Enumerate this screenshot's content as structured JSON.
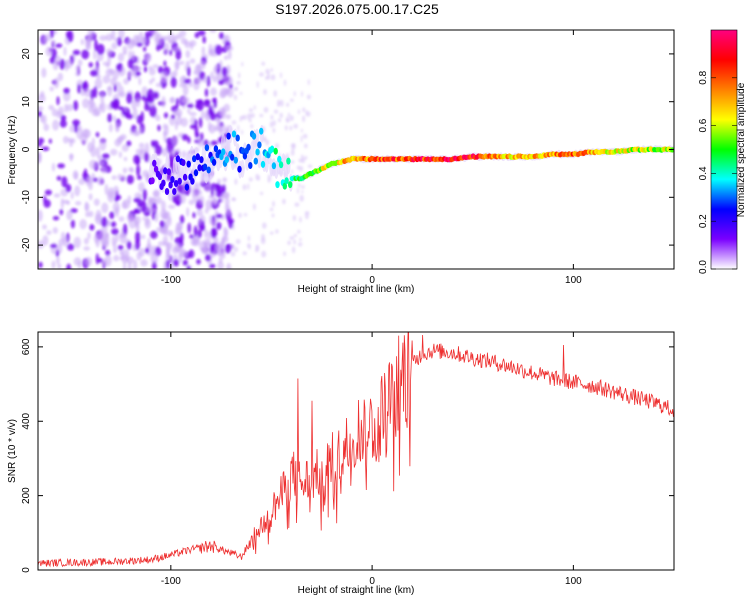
{
  "figure": {
    "title": "S197.2026.075.00.17.C25"
  },
  "chart_data": [
    {
      "type": "heatmap",
      "title": "",
      "xlabel": "Height of straight line (km)",
      "ylabel": "Frequency (Hz)",
      "xlim": [
        -166,
        150
      ],
      "ylim": [
        -25,
        25
      ],
      "xticks": [
        -100,
        0,
        100
      ],
      "yticks": [
        -20,
        -10,
        0,
        10,
        20
      ],
      "xtick_labels": [
        "-100",
        "0",
        "100"
      ],
      "ytick_labels": [
        "-20",
        "-10",
        "0",
        "10",
        "20"
      ],
      "colorbar": {
        "label": "Normalized spectral amplitude",
        "range": [
          0,
          1
        ],
        "ticks": [
          0.0,
          0.2,
          0.4,
          0.6,
          0.8
        ],
        "tick_labels": [
          "0.0",
          "0.2",
          "0.4",
          "0.6",
          "0.8"
        ],
        "colors": [
          "#ffffff",
          "#7a00ff",
          "#0000ff",
          "#00ffff",
          "#00ff00",
          "#ffff00",
          "#ff8000",
          "#ff0000",
          "#ff0080"
        ]
      },
      "ridge": {
        "x": [
          -166,
          -140,
          -120,
          -100,
          -90,
          -80,
          -70,
          -65,
          -60,
          -55,
          -50,
          -45,
          -40,
          -35,
          -30,
          -20,
          -10,
          0,
          10,
          20,
          30,
          40,
          50,
          60,
          70,
          80,
          90,
          100,
          110,
          120,
          130,
          140,
          150
        ],
        "frequency": [
          0,
          0,
          -2,
          -6,
          -4,
          -2,
          1,
          -2,
          0,
          1,
          -3,
          -5,
          -6,
          -6,
          -5,
          -3,
          -2,
          -2,
          -2,
          -2,
          -2,
          -2,
          -1.5,
          -1.5,
          -1.5,
          -1.5,
          -1,
          -1,
          -0.5,
          -0.5,
          0,
          0,
          0
        ],
        "amplitude": [
          0.05,
          0.05,
          0.1,
          0.2,
          0.25,
          0.3,
          0.35,
          0.3,
          0.35,
          0.4,
          0.45,
          0.45,
          0.5,
          0.55,
          0.6,
          0.7,
          0.8,
          0.85,
          0.9,
          0.95,
          1.0,
          1.0,
          0.95,
          0.8,
          0.75,
          0.75,
          0.8,
          0.85,
          0.75,
          0.7,
          0.65,
          0.65,
          0.7
        ]
      },
      "scatter_region": {
        "x": [
          -166,
          -70
        ],
        "frequency": [
          -25,
          25
        ],
        "amplitude": 0.2
      }
    },
    {
      "type": "line",
      "title": "",
      "xlabel": "Height of straight line (km)",
      "ylabel": "SNR (10 * v/v)",
      "xlim": [
        -166,
        150
      ],
      "ylim": [
        0,
        640
      ],
      "xticks": [
        -100,
        0,
        100
      ],
      "yticks": [
        0,
        200,
        400,
        600
      ],
      "xtick_labels": [
        "-100",
        "0",
        "100"
      ],
      "ytick_labels": [
        "0",
        "200",
        "400",
        "600"
      ],
      "series": [
        {
          "name": "SNR",
          "color": "#ee3030",
          "x": [
            -166,
            -150,
            -130,
            -110,
            -100,
            -90,
            -80,
            -70,
            -65,
            -60,
            -55,
            -50,
            -45,
            -40,
            -35,
            -30,
            -25,
            -20,
            -15,
            -10,
            -5,
            0,
            5,
            10,
            15,
            20,
            25,
            30,
            40,
            50,
            60,
            70,
            80,
            90,
            100,
            110,
            120,
            130,
            140,
            150
          ],
          "y": [
            18,
            20,
            22,
            28,
            40,
            55,
            65,
            45,
            35,
            80,
            120,
            160,
            200,
            260,
            230,
            250,
            260,
            290,
            310,
            360,
            380,
            390,
            420,
            470,
            520,
            560,
            580,
            590,
            585,
            570,
            560,
            545,
            530,
            515,
            505,
            495,
            480,
            465,
            450,
            430
          ],
          "spikes": [
            {
              "x": -37,
              "y": 515
            },
            {
              "x": -30,
              "y": 455
            },
            {
              "x": 12,
              "y": 575
            },
            {
              "x": 25,
              "y": 632
            },
            {
              "x": 95,
              "y": 605
            }
          ]
        }
      ]
    }
  ]
}
